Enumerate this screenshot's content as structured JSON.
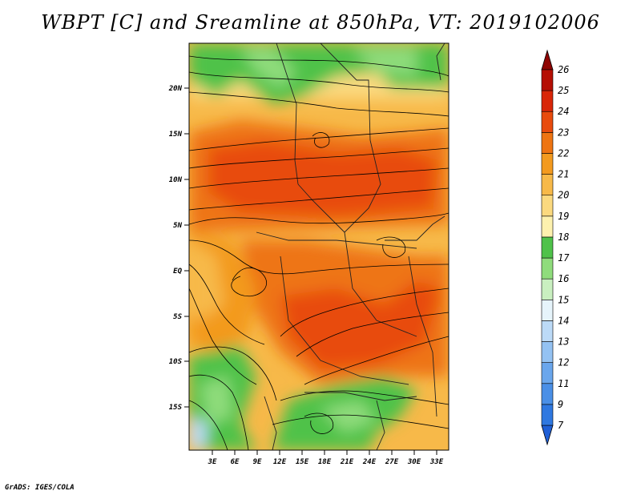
{
  "title": "WBPT [C] and Sreamline at 850hPa, VT: 2019102006",
  "footer": "GrADS: IGES/COLA",
  "map": {
    "lat_labels": [
      "20N",
      "15N",
      "10N",
      "5N",
      "EQ",
      "5S",
      "10S",
      "15S"
    ],
    "lon_labels": [
      "3E",
      "6E",
      "9E",
      "12E",
      "15E",
      "18E",
      "21E",
      "24E",
      "27E",
      "30E",
      "33E"
    ]
  },
  "colorbar": {
    "levels": [
      "7",
      "9",
      "11",
      "12",
      "13",
      "14",
      "15",
      "16",
      "17",
      "18",
      "19",
      "20",
      "21",
      "22",
      "23",
      "24",
      "25",
      "26"
    ],
    "colors": [
      "#1f5fd6",
      "#2f78e0",
      "#4a8fe6",
      "#6aa6ec",
      "#94c2f2",
      "#bcdaf7",
      "#e6f4fb",
      "#c9efc0",
      "#8fdc7c",
      "#4fc24a",
      "#fdf1ae",
      "#fbd97f",
      "#f7b949",
      "#f39a1f",
      "#ee7412",
      "#e84b0d",
      "#d82608",
      "#b50f04",
      "#8f0502"
    ]
  }
}
